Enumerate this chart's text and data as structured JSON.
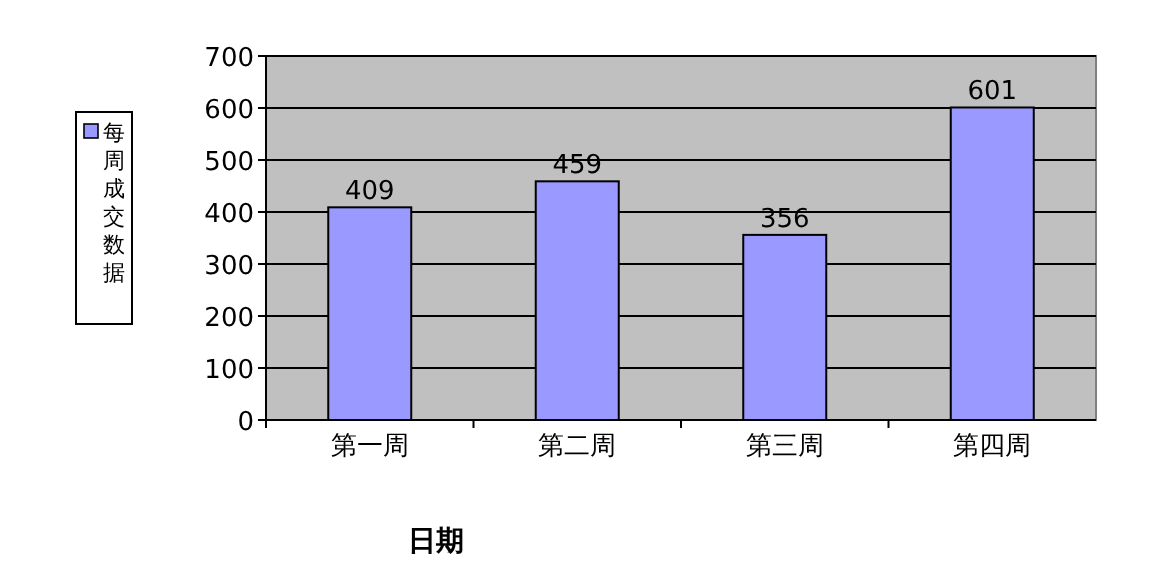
{
  "chart_data": {
    "type": "bar",
    "xlabel": "日期",
    "categories": [
      "第一周",
      "第二周",
      "第三周",
      "第四周"
    ],
    "series": [
      {
        "name": "每周成交数据",
        "color": "#9999ff",
        "values": [
          409,
          459,
          356,
          601
        ]
      }
    ],
    "ylim": [
      0,
      700
    ],
    "yticks": [
      0,
      100,
      200,
      300,
      400,
      500,
      600,
      700
    ],
    "grid": "y",
    "legend": "left",
    "data_labels": true
  }
}
